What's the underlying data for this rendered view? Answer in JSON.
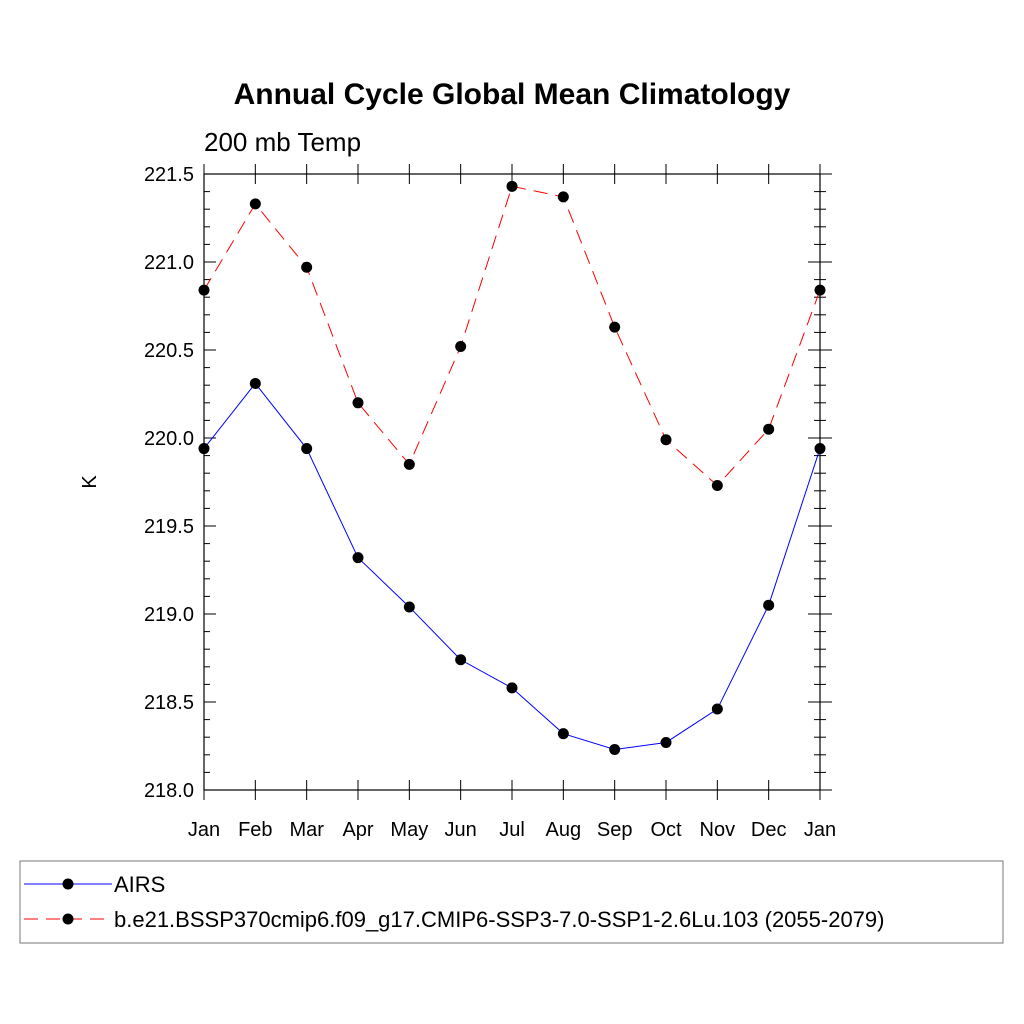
{
  "chart_data": {
    "type": "line",
    "title": "Annual Cycle Global Mean Climatology",
    "subtitle": "200 mb Temp",
    "xlabel": "",
    "ylabel": "K",
    "categories": [
      "Jan",
      "Feb",
      "Mar",
      "Apr",
      "May",
      "Jun",
      "Jul",
      "Aug",
      "Sep",
      "Oct",
      "Nov",
      "Dec",
      "Jan"
    ],
    "ylim": [
      218.0,
      221.5
    ],
    "yticks": [
      "218.0",
      "218.5",
      "219.0",
      "219.5",
      "220.0",
      "220.5",
      "221.0",
      "221.5"
    ],
    "legend_position": "bottom",
    "series": [
      {
        "name": "AIRS",
        "color": "#0000ff",
        "line_style": "solid",
        "marker": "filled-circle",
        "values": [
          219.94,
          220.31,
          219.94,
          219.32,
          219.04,
          218.74,
          218.58,
          218.32,
          218.23,
          218.27,
          218.46,
          219.05,
          219.94
        ]
      },
      {
        "name": "b.e21.BSSP370cmip6.f09_g17.CMIP6-SSP3-7.0-SSP1-2.6Lu.103 (2055-2079)",
        "color": "#ff0000",
        "line_style": "dashed",
        "marker": "filled-circle",
        "values": [
          220.84,
          221.33,
          220.97,
          220.2,
          219.85,
          220.52,
          221.43,
          221.37,
          220.63,
          219.99,
          219.73,
          220.05,
          220.84
        ]
      }
    ]
  }
}
